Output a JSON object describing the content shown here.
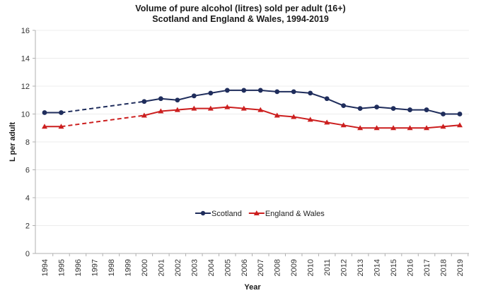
{
  "chart_data": {
    "type": "line",
    "title": "Volume of pure alcohol (litres) sold per adult (16+)",
    "subtitle": "Scotland and England & Wales, 1994-2019",
    "xlabel": "Year",
    "ylabel": "L per adult",
    "ylim": [
      0,
      16
    ],
    "yticks": [
      0,
      2,
      4,
      6,
      8,
      10,
      12,
      14,
      16
    ],
    "categories": [
      "1994",
      "1995",
      "1996",
      "1997",
      "1998",
      "1999",
      "2000",
      "2001",
      "2002",
      "2003",
      "2004",
      "2005",
      "2006",
      "2007",
      "2008",
      "2009",
      "2010",
      "2011",
      "2012",
      "2013",
      "2014",
      "2015",
      "2016",
      "2017",
      "2018",
      "2019"
    ],
    "grid": true,
    "legend_position": "center",
    "gap_years_dashed": [
      "1995",
      "2000"
    ],
    "series": [
      {
        "name": "Scotland",
        "color": "#1f2d5c",
        "marker": "circle",
        "values": [
          10.1,
          10.1,
          null,
          null,
          null,
          null,
          10.9,
          11.1,
          11.0,
          11.3,
          11.5,
          11.7,
          11.7,
          11.7,
          11.6,
          11.6,
          11.5,
          11.1,
          10.6,
          10.4,
          10.5,
          10.4,
          10.3,
          10.3,
          10.0,
          10.0
        ]
      },
      {
        "name": "England & Wales",
        "color": "#cc1f1f",
        "marker": "triangle",
        "values": [
          9.1,
          9.1,
          null,
          null,
          null,
          null,
          9.9,
          10.2,
          10.3,
          10.4,
          10.4,
          10.5,
          10.4,
          10.3,
          9.9,
          9.8,
          9.6,
          9.4,
          9.2,
          9.0,
          9.0,
          9.0,
          9.0,
          9.0,
          9.1,
          9.2
        ]
      }
    ]
  }
}
